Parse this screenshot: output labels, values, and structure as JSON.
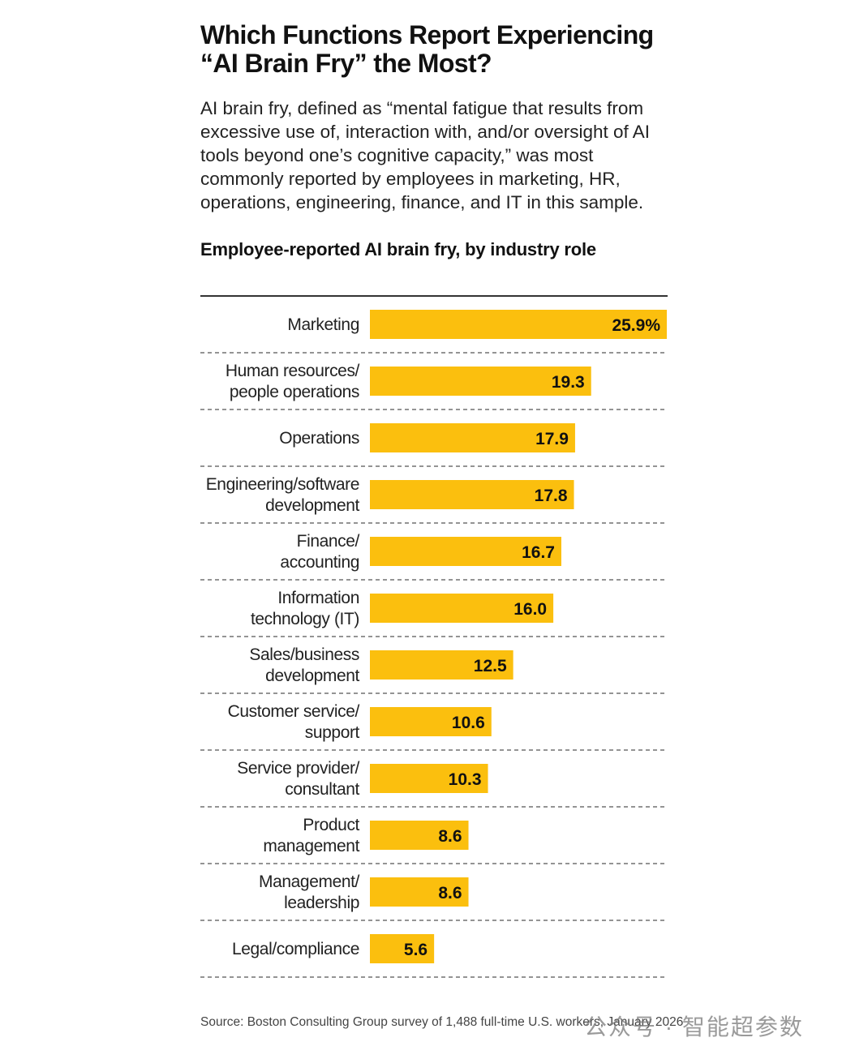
{
  "header": {
    "title": "Which Functions Report Experiencing “AI Brain Fry” the Most?",
    "subtitle": "AI brain fry, defined as “mental fatigue that results from excessive use of, interaction with, and/or oversight of AI tools beyond one’s cognitive capacity,” was most commonly reported by employees in marketing, HR, operations, engineering, finance, and IT in this sample."
  },
  "chart_data": {
    "type": "bar",
    "orientation": "horizontal",
    "title": "Employee-reported AI brain fry, by industry role",
    "categories": [
      [
        "Marketing"
      ],
      [
        "Human resources/",
        "people operations"
      ],
      [
        "Operations"
      ],
      [
        "Engineering/software",
        "development"
      ],
      [
        "Finance/",
        "accounting"
      ],
      [
        "Information",
        "technology (IT)"
      ],
      [
        "Sales/business",
        "development"
      ],
      [
        "Customer service/",
        "support"
      ],
      [
        "Service provider/",
        "consultant"
      ],
      [
        "Product",
        "management"
      ],
      [
        "Management/",
        "leadership"
      ],
      [
        "Legal/compliance"
      ]
    ],
    "values": [
      25.9,
      19.3,
      17.9,
      17.8,
      16.7,
      16.0,
      12.5,
      10.6,
      10.3,
      8.6,
      8.6,
      5.6
    ],
    "value_labels": [
      "25.9%",
      "19.3",
      "17.9",
      "17.8",
      "16.7",
      "16.0",
      "12.5",
      "10.6",
      "10.3",
      "8.6",
      "8.6",
      "5.6"
    ],
    "xlim": [
      0,
      25.9
    ],
    "bar_color": "#FBBF0E",
    "grid": false
  },
  "footer": {
    "source": "Source: Boston Consulting Group survey of 1,488 full-time U.S. workers, January 2026",
    "watermark": "公众号 · 智能超参数"
  }
}
